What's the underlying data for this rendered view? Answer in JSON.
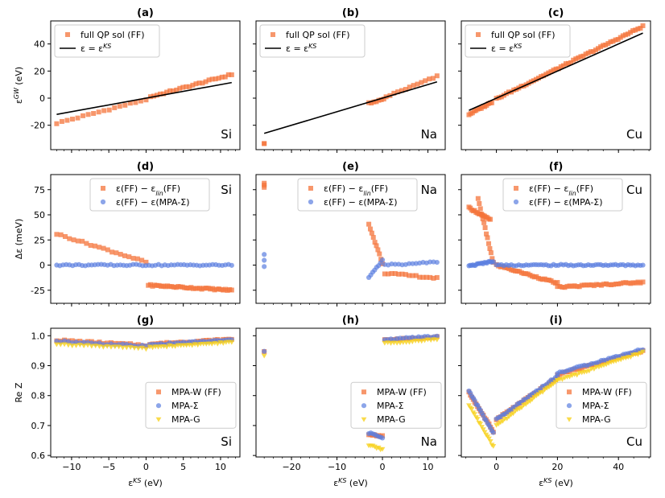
{
  "colors": {
    "ff": "#f4743b",
    "ff_dark": "#e8450f",
    "sigma": "#5b7fe0",
    "g": "#f7d21f",
    "ks_line": "#000000"
  },
  "figure": {
    "shared_xlabel_prefix": "ε",
    "shared_xlabel_sup": "KS",
    "shared_xlabel_suffix": " (eV)"
  },
  "chart_data": [
    {
      "id": "a",
      "type": "scatter",
      "title": "(a)",
      "material": "Si",
      "row": 0,
      "col": 0,
      "ylabel": "ε^GW (eV)",
      "xlim": [
        -12.8,
        12.6
      ],
      "ylim": [
        -38,
        57
      ],
      "xticks": [
        -10,
        -5,
        0,
        5,
        10
      ],
      "yticks": [
        -20,
        0,
        20,
        40
      ],
      "show_yticklabels": true,
      "show_xticklabels": false,
      "legend": {
        "position": "top-left",
        "entries": [
          "full QP sol (FF)",
          "ε = ε^KS"
        ]
      },
      "series": [
        {
          "name": "full QP sol (FF)",
          "marker": "square",
          "color": "#f4743b",
          "segments": [
            {
              "x": [
                -12,
                0
              ],
              "y": [
                -18.5,
                -1
              ],
              "n": 18
            },
            {
              "x": [
                0.6,
                11.5
              ],
              "y": [
                1,
                17.5
              ],
              "n": 26
            }
          ]
        },
        {
          "name": "ε = ε^KS",
          "marker": "line",
          "color": "#000000",
          "x": [
            -12,
            11.5
          ],
          "y": [
            -12,
            11.5
          ]
        }
      ]
    },
    {
      "id": "b",
      "type": "scatter",
      "title": "(b)",
      "material": "Na",
      "row": 0,
      "col": 1,
      "ylabel": "",
      "xlim": [
        -27.8,
        13.8
      ],
      "ylim": [
        -38,
        57
      ],
      "xticks": [
        -20,
        -10,
        0,
        10
      ],
      "yticks": [
        -20,
        0,
        20,
        40
      ],
      "show_yticklabels": false,
      "show_xticklabels": false,
      "legend": {
        "position": "top-left",
        "entries": [
          "full QP sol (FF)",
          "ε = ε^KS"
        ]
      },
      "series": [
        {
          "name": "full QP sol (FF)",
          "marker": "square",
          "color": "#f4743b",
          "segments": [
            {
              "x": [
                -26,
                -26
              ],
              "y": [
                -33,
                -33
              ],
              "n": 2
            },
            {
              "x": [
                -3,
                0.3
              ],
              "y": [
                -3.5,
                -1
              ],
              "n": 7
            },
            {
              "x": [
                0.8,
                12
              ],
              "y": [
                1,
                16
              ],
              "n": 14
            }
          ]
        },
        {
          "name": "ε = ε^KS",
          "marker": "line",
          "color": "#000000",
          "x": [
            -26,
            12
          ],
          "y": [
            -26,
            12
          ]
        }
      ]
    },
    {
      "id": "c",
      "type": "scatter",
      "title": "(c)",
      "material": "Cu",
      "row": 0,
      "col": 2,
      "ylabel": "",
      "xlim": [
        -11.5,
        50.5
      ],
      "ylim": [
        -38,
        57
      ],
      "xticks": [
        0,
        20,
        40
      ],
      "yticks": [
        -20,
        0,
        20,
        40
      ],
      "show_yticklabels": false,
      "show_xticklabels": false,
      "legend": {
        "position": "top-left",
        "entries": [
          "full QP sol (FF)",
          "ε = ε^KS"
        ]
      },
      "series": [
        {
          "name": "full QP sol (FF)",
          "marker": "square",
          "color": "#f4743b",
          "segments": [
            {
              "x": [
                -9,
                -1.5
              ],
              "y": [
                -12,
                -3
              ],
              "n": 14
            },
            {
              "x": [
                0,
                48
              ],
              "y": [
                -0.5,
                53
              ],
              "n": 60
            }
          ]
        },
        {
          "name": "ε = ε^KS",
          "marker": "line",
          "color": "#000000",
          "x": [
            -9,
            48
          ],
          "y": [
            -9,
            48
          ]
        }
      ]
    },
    {
      "id": "d",
      "type": "scatter",
      "title": "(d)",
      "material": "Si",
      "row": 1,
      "col": 0,
      "ylabel": "Δε (meV)",
      "xlim": [
        -12.8,
        12.6
      ],
      "ylim": [
        -38,
        90
      ],
      "xticks": [
        -10,
        -5,
        0,
        5,
        10
      ],
      "yticks": [
        -25,
        0,
        25,
        50,
        75
      ],
      "show_yticklabels": true,
      "show_xticklabels": false,
      "legend": {
        "position": "top-right",
        "entries": [
          "ε(FF) − ε_lin(FF)",
          "ε(FF) − ε(MPA-Σ)"
        ]
      },
      "series": [
        {
          "name": "ε(FF) − ε_lin(FF)",
          "marker": "square",
          "color": "#f4743b",
          "segments": [
            {
              "x": [
                -12,
                0
              ],
              "y": [
                31,
                3
              ],
              "n": 22
            },
            {
              "x": [
                0.3,
                11.5
              ],
              "y": [
                -20,
                -25
              ],
              "n": 40
            }
          ]
        },
        {
          "name": "ε(FF) − ε(MPA-Σ)",
          "marker": "circle",
          "color": "#5b7fe0",
          "segments": [
            {
              "x": [
                -12,
                11.5
              ],
              "y": [
                0,
                0
              ],
              "n": 56
            }
          ]
        }
      ]
    },
    {
      "id": "e",
      "type": "scatter",
      "title": "(e)",
      "material": "Na",
      "row": 1,
      "col": 1,
      "ylabel": "",
      "xlim": [
        -27.8,
        13.8
      ],
      "ylim": [
        -38,
        90
      ],
      "xticks": [
        -20,
        -10,
        0,
        10
      ],
      "yticks": [
        -25,
        0,
        25,
        50,
        75
      ],
      "show_yticklabels": false,
      "show_xticklabels": false,
      "legend": {
        "position": "top-center",
        "entries": [
          "ε(FF) − ε_lin(FF)",
          "ε(FF) − ε(MPA-Σ)"
        ]
      },
      "series": [
        {
          "name": "ε(FF) − ε_lin(FF)",
          "marker": "square",
          "color": "#f4743b",
          "segments": [
            {
              "x": [
                -26,
                -26
              ],
              "y": [
                78,
                82
              ],
              "n": 3
            },
            {
              "x": [
                -3,
                0
              ],
              "y": [
                40,
                2
              ],
              "n": 10
            },
            {
              "x": [
                0.5,
                12
              ],
              "y": [
                -8,
                -13
              ],
              "n": 16
            }
          ]
        },
        {
          "name": "ε(FF) − ε(MPA-Σ)",
          "marker": "circle",
          "color": "#5b7fe0",
          "segments": [
            {
              "x": [
                -26,
                -26
              ],
              "y": [
                -1,
                10
              ],
              "n": 3
            },
            {
              "x": [
                -3,
                0
              ],
              "y": [
                -12,
                5
              ],
              "n": 8
            },
            {
              "x": [
                0.5,
                12
              ],
              "y": [
                0,
                3
              ],
              "n": 16
            }
          ]
        }
      ]
    },
    {
      "id": "f",
      "type": "scatter",
      "title": "(f)",
      "material": "Cu",
      "row": 1,
      "col": 2,
      "ylabel": "",
      "xlim": [
        -11.5,
        50.5
      ],
      "ylim": [
        -38,
        90
      ],
      "xticks": [
        0,
        20,
        40
      ],
      "yticks": [
        -25,
        0,
        25,
        50,
        75
      ],
      "show_yticklabels": false,
      "show_xticklabels": false,
      "legend": {
        "position": "top-center",
        "entries": [
          "ε(FF) − ε_lin(FF)",
          "ε(FF) − ε(MPA-Σ)"
        ]
      },
      "series": [
        {
          "name": "ε(FF) − ε_lin(FF)",
          "marker": "square",
          "color": "#f4743b",
          "segments": [
            {
              "x": [
                -9,
                -2
              ],
              "y": [
                57,
                45
              ],
              "n": 16
            },
            {
              "x": [
                -6,
                -1
              ],
              "y": [
                66,
                2
              ],
              "n": 14
            },
            {
              "x": [
                0,
                20
              ],
              "y": [
                0,
                -18
              ],
              "n": 30
            },
            {
              "x": [
                20,
                48
              ],
              "y": [
                -22,
                -17
              ],
              "n": 36
            }
          ]
        },
        {
          "name": "ε(FF) − ε(MPA-Σ)",
          "marker": "circle",
          "color": "#5b7fe0",
          "segments": [
            {
              "x": [
                -9,
                -1
              ],
              "y": [
                -1,
                4
              ],
              "n": 20
            },
            {
              "x": [
                0,
                48
              ],
              "y": [
                0,
                0
              ],
              "n": 60
            }
          ]
        }
      ]
    },
    {
      "id": "g",
      "type": "scatter",
      "title": "(g)",
      "material": "Si",
      "row": 2,
      "col": 0,
      "ylabel": "Re Z",
      "xlabel": "ε^KS (eV)",
      "xlim": [
        -12.8,
        12.6
      ],
      "ylim": [
        0.595,
        1.025
      ],
      "xticks": [
        -10,
        -5,
        0,
        5,
        10
      ],
      "xticklabels": [
        "−10",
        "−5",
        "0",
        "5",
        "10"
      ],
      "yticks": [
        0.6,
        0.7,
        0.8,
        0.9,
        1.0
      ],
      "yticklabels": [
        "0.6",
        "0.7",
        "0.8",
        "0.9",
        "1.0"
      ],
      "show_yticklabels": true,
      "show_xticklabels": true,
      "legend": {
        "position": "center-right",
        "entries": [
          "MPA-W (FF)",
          "MPA-Σ",
          "MPA-G"
        ]
      },
      "series": [
        {
          "name": "MPA-W (FF)",
          "marker": "square",
          "color": "#f4743b",
          "segments": [
            {
              "x": [
                -12,
                0
              ],
              "y": [
                0.985,
                0.968
              ],
              "n": 24
            },
            {
              "x": [
                0.5,
                11.5
              ],
              "y": [
                0.972,
                0.988
              ],
              "n": 30
            }
          ]
        },
        {
          "name": "MPA-Σ",
          "marker": "circle",
          "color": "#5b7fe0",
          "segments": [
            {
              "x": [
                -12,
                0
              ],
              "y": [
                0.982,
                0.965
              ],
              "n": 24
            },
            {
              "x": [
                0.5,
                11.5
              ],
              "y": [
                0.97,
                0.986
              ],
              "n": 30
            }
          ]
        },
        {
          "name": "MPA-G",
          "marker": "triangle",
          "color": "#f7d21f",
          "segments": [
            {
              "x": [
                -12,
                0
              ],
              "y": [
                0.972,
                0.958
              ],
              "n": 24
            },
            {
              "x": [
                0.5,
                11.5
              ],
              "y": [
                0.962,
                0.978
              ],
              "n": 30
            }
          ]
        }
      ]
    },
    {
      "id": "h",
      "type": "scatter",
      "title": "(h)",
      "material": "Na",
      "row": 2,
      "col": 1,
      "ylabel": "",
      "xlabel": "ε^KS (eV)",
      "xlim": [
        -27.8,
        13.8
      ],
      "ylim": [
        0.595,
        1.025
      ],
      "xticks": [
        -20,
        -10,
        0,
        10
      ],
      "xticklabels": [
        "−20",
        "−10",
        "0",
        "10"
      ],
      "yticks": [
        0.6,
        0.7,
        0.8,
        0.9,
        1.0
      ],
      "show_yticklabels": false,
      "show_xticklabels": true,
      "legend": {
        "position": "center-right",
        "entries": [
          "MPA-W (FF)",
          "MPA-Σ",
          "MPA-G"
        ]
      },
      "series": [
        {
          "name": "MPA-W (FF)",
          "marker": "square",
          "color": "#f4743b",
          "segments": [
            {
              "x": [
                -26,
                -26
              ],
              "y": [
                0.948,
                0.948
              ],
              "n": 1
            },
            {
              "x": [
                -3,
                0
              ],
              "y": [
                0.67,
                0.665
              ],
              "n": 8
            },
            {
              "x": [
                0.5,
                12
              ],
              "y": [
                0.985,
                0.997
              ],
              "n": 18
            }
          ]
        },
        {
          "name": "MPA-Σ",
          "marker": "circle",
          "color": "#5b7fe0",
          "segments": [
            {
              "x": [
                -26,
                -26
              ],
              "y": [
                0.95,
                0.95
              ],
              "n": 1
            },
            {
              "x": [
                -3,
                0
              ],
              "y": [
                0.675,
                0.66
              ],
              "n": 8
            },
            {
              "x": [
                0.5,
                12
              ],
              "y": [
                0.987,
                0.998
              ],
              "n": 18
            }
          ]
        },
        {
          "name": "MPA-G",
          "marker": "triangle",
          "color": "#f7d21f",
          "segments": [
            {
              "x": [
                -26,
                -26
              ],
              "y": [
                0.932,
                0.932
              ],
              "n": 1
            },
            {
              "x": [
                -3,
                0
              ],
              "y": [
                0.635,
                0.62
              ],
              "n": 8
            },
            {
              "x": [
                0.5,
                12
              ],
              "y": [
                0.975,
                0.988
              ],
              "n": 18
            }
          ]
        }
      ]
    },
    {
      "id": "i",
      "type": "scatter",
      "title": "(i)",
      "material": "Cu",
      "row": 2,
      "col": 2,
      "ylabel": "",
      "xlabel": "ε^KS (eV)",
      "xlim": [
        -11.5,
        50.5
      ],
      "ylim": [
        0.595,
        1.025
      ],
      "xticks": [
        0,
        20,
        40
      ],
      "xticklabels": [
        "0",
        "20",
        "40"
      ],
      "yticks": [
        0.6,
        0.7,
        0.8,
        0.9,
        1.0
      ],
      "show_yticklabels": false,
      "show_xticklabels": true,
      "legend": {
        "position": "center-right",
        "entries": [
          "MPA-W (FF)",
          "MPA-Σ",
          "MPA-G"
        ]
      },
      "series": [
        {
          "name": "MPA-W (FF)",
          "marker": "square",
          "color": "#f4743b",
          "segments": [
            {
              "x": [
                -9,
                -1
              ],
              "y": [
                0.81,
                0.68
              ],
              "n": 18
            },
            {
              "x": [
                0,
                20
              ],
              "y": [
                0.72,
                0.86
              ],
              "n": 30
            },
            {
              "x": [
                20,
                48
              ],
              "y": [
                0.87,
                0.95
              ],
              "n": 36
            }
          ]
        },
        {
          "name": "MPA-Σ",
          "marker": "circle",
          "color": "#5b7fe0",
          "segments": [
            {
              "x": [
                -9,
                -1
              ],
              "y": [
                0.815,
                0.675
              ],
              "n": 18
            },
            {
              "x": [
                0,
                20
              ],
              "y": [
                0.72,
                0.865
              ],
              "n": 30
            },
            {
              "x": [
                20,
                48
              ],
              "y": [
                0.875,
                0.955
              ],
              "n": 36
            }
          ]
        },
        {
          "name": "MPA-G",
          "marker": "triangle",
          "color": "#f7d21f",
          "segments": [
            {
              "x": [
                -9,
                -1
              ],
              "y": [
                0.77,
                0.63
              ],
              "n": 18
            },
            {
              "x": [
                0,
                20
              ],
              "y": [
                0.7,
                0.85
              ],
              "n": 30
            },
            {
              "x": [
                20,
                48
              ],
              "y": [
                0.85,
                0.945
              ],
              "n": 36
            }
          ]
        }
      ]
    }
  ]
}
